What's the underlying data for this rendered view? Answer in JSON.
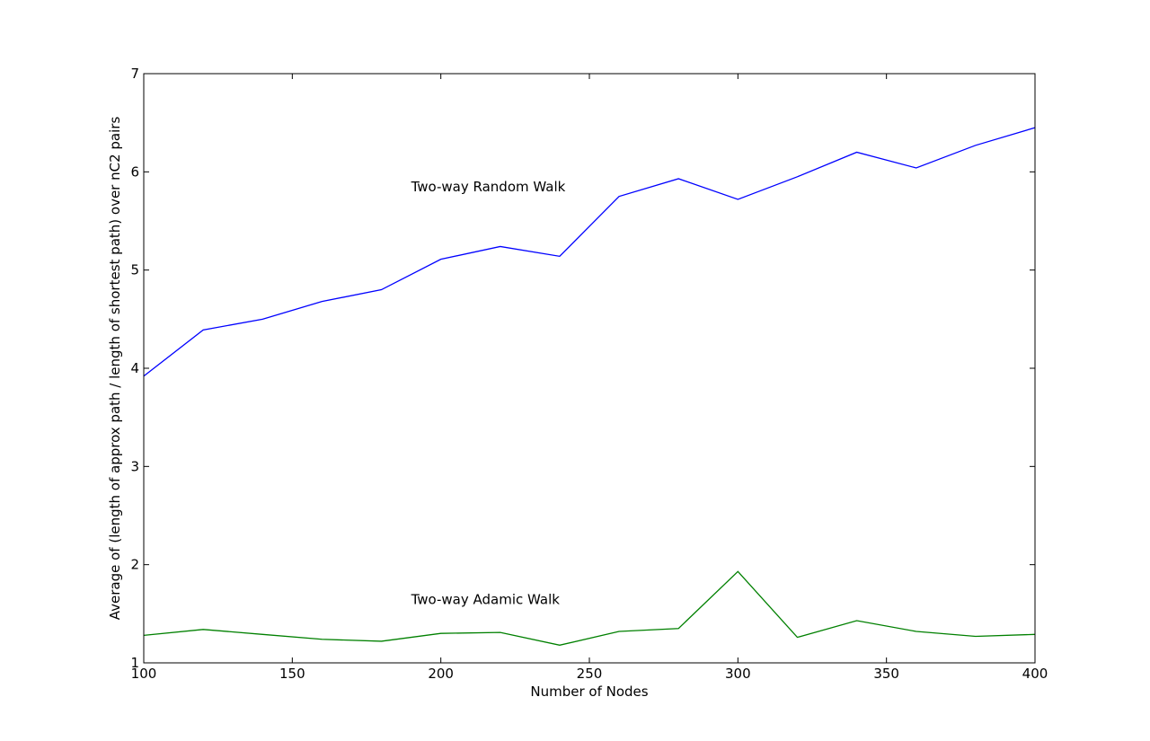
{
  "chart_data": {
    "type": "line",
    "title": "",
    "xlabel": "Number of Nodes",
    "ylabel": "Average of (length of approx path / length of shortest path) over nC2 pairs",
    "xlim": [
      100,
      400
    ],
    "ylim": [
      1,
      7
    ],
    "xticks": [
      100,
      150,
      200,
      250,
      300,
      350,
      400
    ],
    "yticks": [
      1,
      2,
      3,
      4,
      5,
      6,
      7
    ],
    "grid": false,
    "x": [
      100,
      120,
      140,
      160,
      180,
      200,
      220,
      240,
      260,
      280,
      300,
      320,
      340,
      360,
      380,
      400
    ],
    "series": [
      {
        "name": "Two-way Random Walk",
        "color": "#0000ff",
        "values": [
          3.92,
          4.39,
          4.5,
          4.68,
          4.8,
          5.11,
          5.24,
          5.14,
          5.75,
          5.93,
          5.72,
          5.95,
          6.2,
          6.04,
          6.27,
          6.45
        ]
      },
      {
        "name": "Two-way Adamic Walk",
        "color": "#008000",
        "values": [
          1.28,
          1.34,
          1.29,
          1.24,
          1.22,
          1.3,
          1.31,
          1.18,
          1.32,
          1.35,
          1.93,
          1.26,
          1.43,
          1.32,
          1.27,
          1.29
        ]
      }
    ],
    "annotations": [
      {
        "text": "Two-way Random Walk",
        "x": 190,
        "y": 5.8,
        "series": 0
      },
      {
        "text": "Two-way Adamic Walk",
        "x": 190,
        "y": 1.6,
        "series": 1
      }
    ]
  }
}
